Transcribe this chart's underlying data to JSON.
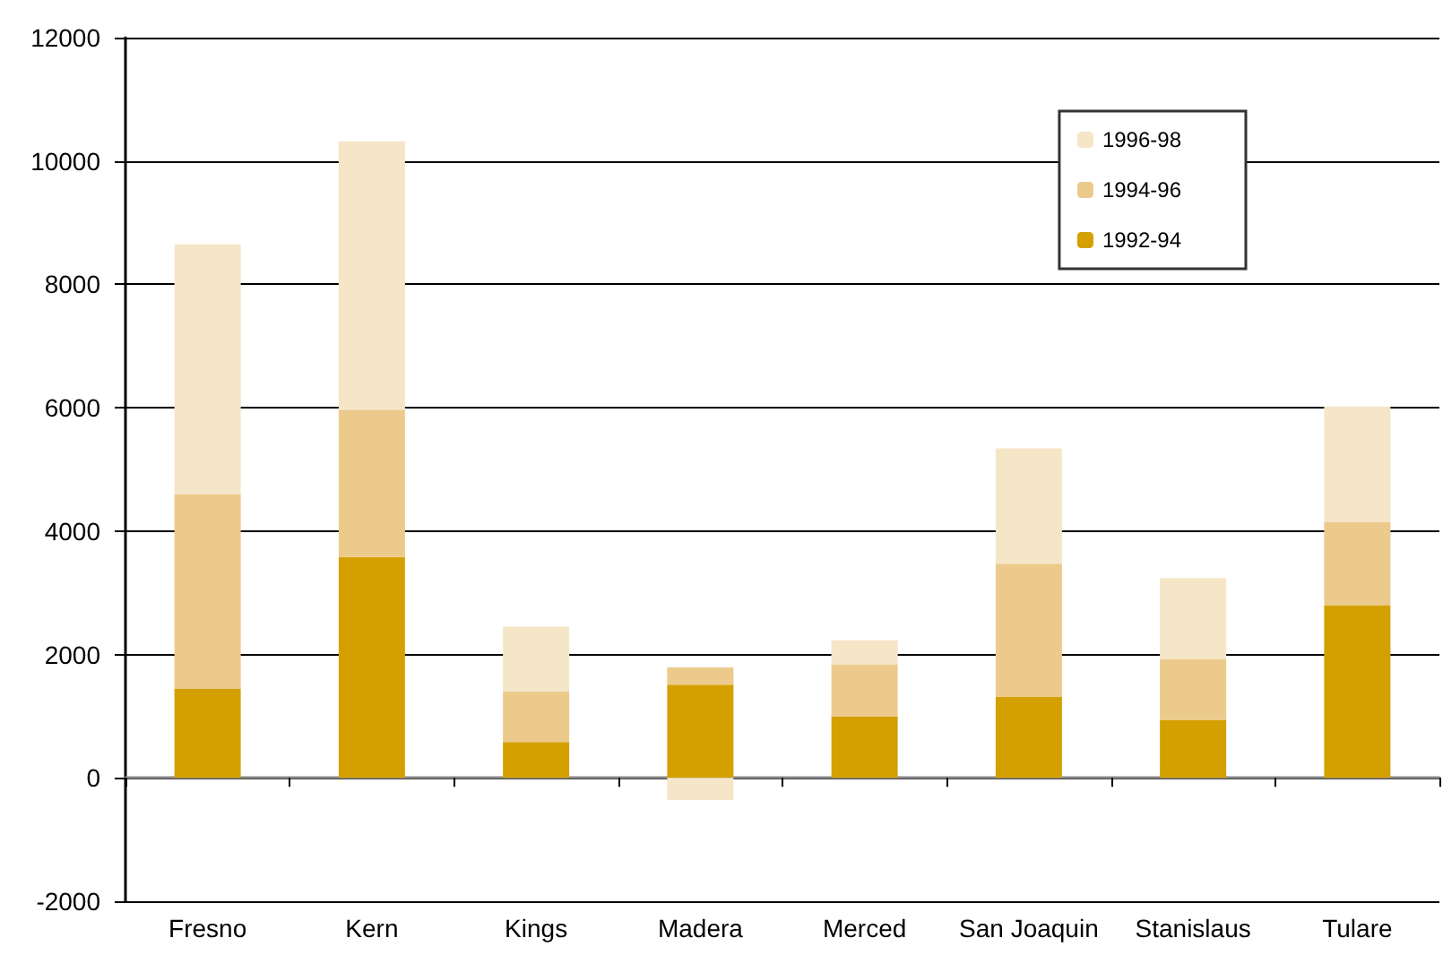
{
  "chart_data": {
    "type": "bar",
    "stacked": true,
    "categories": [
      "Fresno",
      "Kern",
      "Kings",
      "Madera",
      "Merced",
      "San Joaquin",
      "Stanislaus",
      "Tulare"
    ],
    "series": [
      {
        "name": "1992-94",
        "color": "#d4a000",
        "values": [
          1450,
          3580,
          580,
          1510,
          990,
          1320,
          940,
          2800
        ]
      },
      {
        "name": "1994-96",
        "color": "#ecca8c",
        "values": [
          3150,
          2390,
          820,
          280,
          850,
          2150,
          990,
          1350
        ]
      },
      {
        "name": "1996-98",
        "color": "#f5e6c8",
        "values": [
          4050,
          4350,
          1050,
          -360,
          390,
          1870,
          1310,
          1870
        ]
      }
    ],
    "ylim": [
      -2000,
      12000
    ],
    "yticks": [
      -2000,
      0,
      2000,
      4000,
      6000,
      8000,
      10000,
      12000
    ],
    "grid": "y",
    "legend": "top right"
  }
}
